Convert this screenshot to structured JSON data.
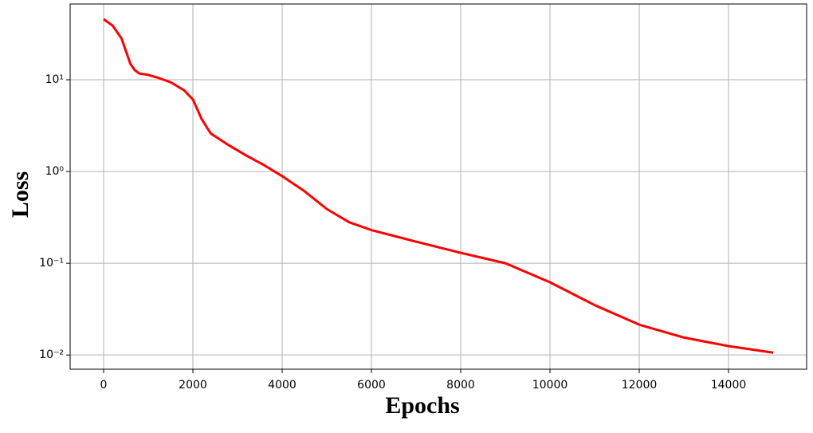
{
  "chart_data": {
    "type": "line",
    "log_y": true,
    "grid": true,
    "x_label": "Epochs",
    "y_label": "Loss",
    "xlim": [
      -750,
      15750
    ],
    "xticks": [
      0,
      2000,
      4000,
      6000,
      8000,
      10000,
      12000,
      14000
    ],
    "ylim": [
      0.007,
      67
    ],
    "yticks": [
      {
        "value": 0.01,
        "label": "10⁻²"
      },
      {
        "value": 0.1,
        "label": "10⁻¹"
      },
      {
        "value": 1,
        "label": "10⁰"
      },
      {
        "value": 10,
        "label": "10¹"
      }
    ],
    "x": [
      0,
      200,
      400,
      600,
      700,
      800,
      1000,
      1200,
      1500,
      1800,
      2000,
      2200,
      2400,
      2800,
      3200,
      3600,
      4000,
      4500,
      5000,
      5500,
      6000,
      7000,
      8000,
      9000,
      10000,
      11000,
      12000,
      13000,
      14000,
      15000
    ],
    "series": [
      {
        "color": "#ff0000",
        "values": [
          45.8,
          39,
          28.3,
          14.9,
          12.7,
          11.7,
          11.3,
          10.6,
          9.4,
          7.7,
          6.1,
          3.7,
          2.6,
          1.94,
          1.49,
          1.17,
          0.89,
          0.61,
          0.39,
          0.28,
          0.23,
          0.172,
          0.13,
          0.1,
          0.062,
          0.035,
          0.0214,
          0.0155,
          0.0125,
          0.0106
        ]
      }
    ]
  }
}
